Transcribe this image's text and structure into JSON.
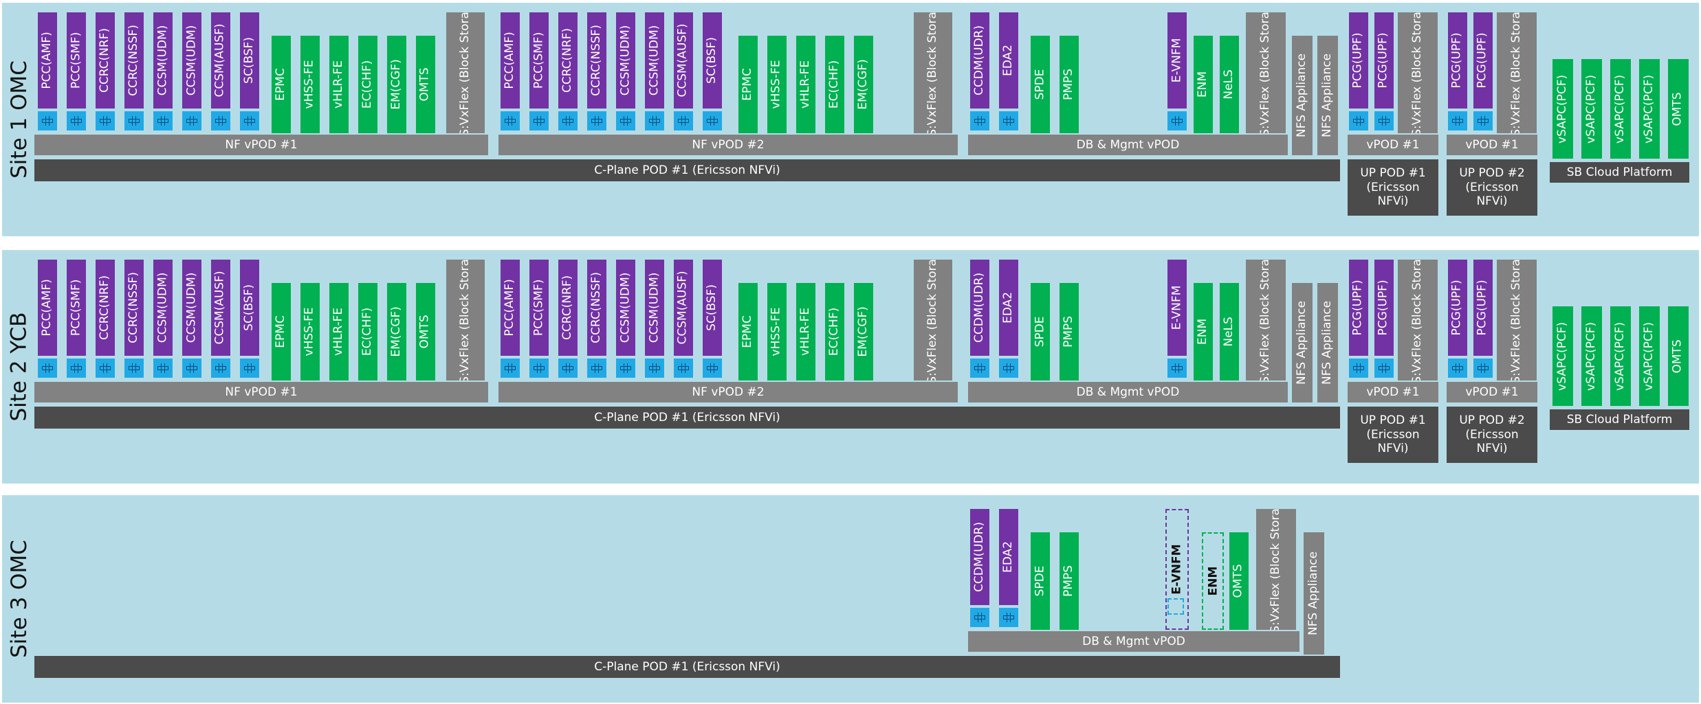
{
  "colors": {
    "background": "#b5dce6",
    "purple": "#7232a4",
    "green": "#00b051",
    "gray": "#818181",
    "dark": "#4b4b4b",
    "chip": "#21a9e6"
  },
  "sites": {
    "s1": {
      "label": "Site 1 OMC",
      "nf1": [
        "PCC(AMF)",
        "PCC(SMF)",
        "CCRC(NRF)",
        "CCRC(NSSF)",
        "CCSM(UDM)",
        "CCSM(UDM)",
        "CCSM(AUSF)",
        "SC(BSF)"
      ],
      "nf1_green": [
        "EPMC",
        "vHSS-FE",
        "vHLR-FE",
        "EC(CHF)",
        "EM(CGF)",
        "OMTS"
      ],
      "sds": "SDS:VxFlex (Block Storage)",
      "nf2": [
        "PCC(AMF)",
        "PCC(SMF)",
        "CCRC(NRF)",
        "CCRC(NSSF)",
        "CCSM(UDM)",
        "CCSM(UDM)",
        "CCSM(AUSF)",
        "SC(BSF)"
      ],
      "nf2_green": [
        "EPMC",
        "vHSS-FE",
        "vHLR-FE",
        "EC(CHF)",
        "EM(CGF)"
      ],
      "db_purple": [
        "CCDM(UDR)",
        "EDA2"
      ],
      "db_green": [
        "SPDE",
        "PMPS"
      ],
      "evnfm": "E-VNFM",
      "enm": "ENM",
      "nels": "NeLS",
      "nfs": "NFS Appliance",
      "pcg": "PCG(UPF)",
      "sapc": "vSAPC(PCF)",
      "omts": "OMTS",
      "nf_vpod1": "NF vPOD #1",
      "nf_vpod2": "NF vPOD #2",
      "db_vpod": "DB & Mgmt vPOD",
      "up_vpod": "vPOD #1",
      "cplane": "C-Plane POD #1 (Ericsson NFVi)",
      "up_pod1": "UP POD #1 (Ericsson NFVi)",
      "up_pod2": "UP POD #2 (Ericsson NFVi)",
      "sb": "SB Cloud Platform"
    },
    "s2": {
      "label": "Site 2 YCB",
      "nf1": [
        "PCC(AMF)",
        "PCC(SMF)",
        "CCRC(NRF)",
        "CCRC(NSSF)",
        "CCSM(UDM)",
        "CCSM(UDM)",
        "CCSM(AUSF)",
        "SC(BSF)"
      ],
      "nf1_green": [
        "EPMC",
        "vHSS-FE",
        "vHLR-FE",
        "EC(CHF)",
        "EM(CGF)",
        "OMTS"
      ],
      "sds": "SDS:VxFlex (Block Storage)",
      "nf2": [
        "PCC(AMF)",
        "PCC(SMF)",
        "CCRC(NRF)",
        "CCRC(NSSF)",
        "CCSM(UDM)",
        "CCSM(UDM)",
        "CCSM(AUSF)",
        "SC(BSF)"
      ],
      "nf2_green": [
        "EPMC",
        "vHSS-FE",
        "vHLR-FE",
        "EC(CHF)",
        "EM(CGF)"
      ],
      "db_purple": [
        "CCDM(UDR)",
        "EDA2"
      ],
      "db_green": [
        "SPDE",
        "PMPS"
      ],
      "evnfm": "E-VNFM",
      "enm": "ENM",
      "nels": "NeLS",
      "nfs": "NFS Appliance",
      "pcg": "PCG(UPF)",
      "sapc": "vSAPC(PCF)",
      "omts": "OMTS",
      "nf_vpod1": "NF vPOD #1",
      "nf_vpod2": "NF vPOD #2",
      "db_vpod": "DB & Mgmt vPOD",
      "up_vpod": "vPOD #1",
      "cplane": "C-Plane POD #1 (Ericsson NFVi)",
      "up_pod1": "UP POD #1 (Ericsson NFVi)",
      "up_pod2": "UP POD #2 (Ericsson NFVi)",
      "sb": "SB Cloud Platform"
    },
    "s3": {
      "label": "Site 3 OMC",
      "db_purple": [
        "CCDM(UDR)",
        "EDA2"
      ],
      "db_green": [
        "SPDE",
        "PMPS"
      ],
      "evnfm": "E-VNFM",
      "enm": "ENM",
      "omts": "OMTS",
      "sds": "SDS:VxFlex (Block Storage)",
      "nfs": "NFS Appliance",
      "db_vpod": "DB & Mgmt vPOD",
      "cplane": "C-Plane POD #1 (Ericsson NFVi)"
    }
  }
}
